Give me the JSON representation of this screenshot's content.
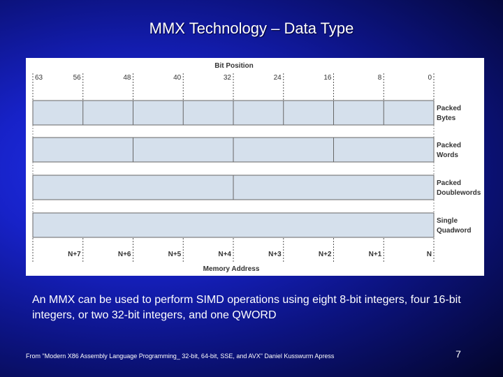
{
  "slide": {
    "title": "MMX Technology – Data Type",
    "caption": "An MMX can be used to perform SIMD operations using eight 8-bit integers, four 16-bit integers, or two 32-bit integers, and one QWORD",
    "source": "From \"Modern X86 Assembly Language Programming_ 32-bit, 64-bit, SSE, and AVX\" Daniel Kusswurm Apress",
    "page_number": "7"
  },
  "figure": {
    "bit_position_label": "Bit Position",
    "bit_ticks": [
      "63",
      "56",
      "48",
      "40",
      "32",
      "24",
      "16",
      "8",
      "0"
    ],
    "rows": [
      {
        "label_lines": [
          "Packed",
          "Bytes"
        ],
        "segments": 8
      },
      {
        "label_lines": [
          "Packed",
          "Words"
        ],
        "segments": 4
      },
      {
        "label_lines": [
          "Packed",
          "Doublewords"
        ],
        "segments": 2
      },
      {
        "label_lines": [
          "Single",
          "Quadword"
        ],
        "segments": 1
      }
    ],
    "address_ticks": [
      "N+7",
      "N+6",
      "N+5",
      "N+4",
      "N+3",
      "N+2",
      "N+1",
      "N"
    ],
    "memory_address_label": "Memory Address",
    "fill_color": "#d5e0ec"
  }
}
